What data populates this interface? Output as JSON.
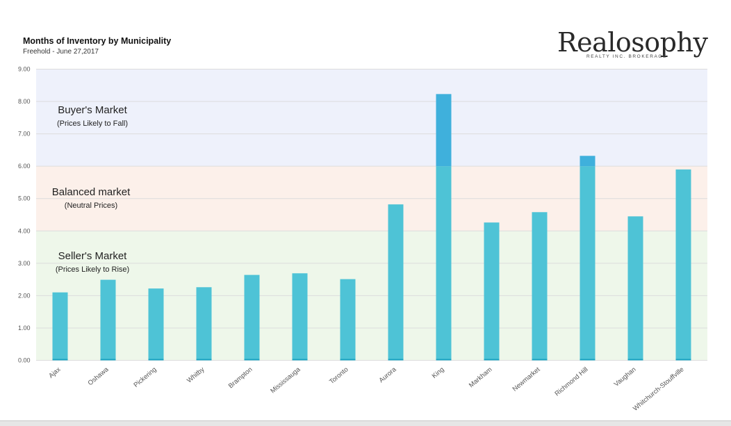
{
  "header": {
    "title": "Months of Inventory by Municipality",
    "subtitle": "Freehold - June 27,2017"
  },
  "logo": {
    "name": "Realosophy",
    "tagline": "REALTY INC. BROKERAGE"
  },
  "zones": [
    {
      "title": "Buyer's Market",
      "subtitle": "(Prices Likely to Fall)",
      "from": 6,
      "to": 9,
      "color": "#eef1fb"
    },
    {
      "title": "Balanced market",
      "subtitle": "(Neutral Prices)",
      "from": 4,
      "to": 6,
      "color": "#fcf0ea"
    },
    {
      "title": "Seller's Market",
      "subtitle": "(Prices Likely to Rise)",
      "from": 0,
      "to": 4,
      "color": "#eef7ea"
    }
  ],
  "colors": {
    "bar": "#4ec3d6",
    "bar_over": "#3fb0dc",
    "grid": "#dcdcdc",
    "baseline": "#1aa3c2"
  },
  "chart_data": {
    "type": "bar",
    "title": "Months of Inventory by Municipality",
    "subtitle": "Freehold - June 27,2017",
    "categories": [
      "Ajax",
      "Oshawa",
      "Pickering",
      "Whitby",
      "Brampton",
      "Mississauga",
      "Toronto",
      "Aurora",
      "King",
      "Markham",
      "Newmarket",
      "Richmond Hill",
      "Vaughan",
      "Whitchurch-Stouffville"
    ],
    "values": [
      2.1,
      2.49,
      2.22,
      2.26,
      2.64,
      2.69,
      2.51,
      4.82,
      8.23,
      4.26,
      4.58,
      6.32,
      4.45,
      5.9
    ],
    "yticks": [
      "0.00",
      "1.00",
      "2.00",
      "3.00",
      "4.00",
      "5.00",
      "6.00",
      "7.00",
      "8.00",
      "9.00"
    ],
    "ylim": [
      0,
      9
    ],
    "grid": true,
    "legend": "none",
    "xlabel": "",
    "ylabel": ""
  }
}
